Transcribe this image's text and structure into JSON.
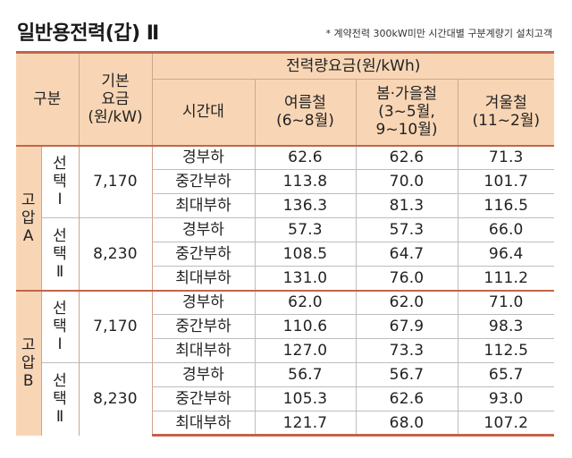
{
  "title": "일반용전력(갑) Ⅱ",
  "note": "* 계약전력 300kW미만 시간대별 구분계량기 설치고객",
  "headers": {
    "division": "구분",
    "base_rate": [
      "기본",
      "요금",
      "(원/kW)"
    ],
    "energy_rate": "전력량요금(원/kWh)",
    "time_period": "시간대",
    "summer": [
      "여름철",
      "(6~8월)"
    ],
    "spring_fall": [
      "봄·가을철",
      "(3~5월,",
      "9~10월)"
    ],
    "winter": [
      "겨울철",
      "(11~2월)"
    ]
  },
  "groups": [
    {
      "label": [
        "고",
        "압",
        "A"
      ],
      "options": [
        {
          "label": [
            "선",
            "택",
            "Ⅰ"
          ],
          "base": "7,170",
          "rows": [
            {
              "period": "경부하",
              "summer": "62.6",
              "spring_fall": "62.6",
              "winter": "71.3"
            },
            {
              "period": "중간부하",
              "summer": "113.8",
              "spring_fall": "70.0",
              "winter": "101.7"
            },
            {
              "period": "최대부하",
              "summer": "136.3",
              "spring_fall": "81.3",
              "winter": "116.5"
            }
          ]
        },
        {
          "label": [
            "선",
            "택",
            "Ⅱ"
          ],
          "base": "8,230",
          "rows": [
            {
              "period": "경부하",
              "summer": "57.3",
              "spring_fall": "57.3",
              "winter": "66.0"
            },
            {
              "period": "중간부하",
              "summer": "108.5",
              "spring_fall": "64.7",
              "winter": "96.4"
            },
            {
              "period": "최대부하",
              "summer": "131.0",
              "spring_fall": "76.0",
              "winter": "111.2"
            }
          ]
        }
      ]
    },
    {
      "label": [
        "고",
        "압",
        "B"
      ],
      "options": [
        {
          "label": [
            "선",
            "택",
            "Ⅰ"
          ],
          "base": "7,170",
          "rows": [
            {
              "period": "경부하",
              "summer": "62.0",
              "spring_fall": "62.0",
              "winter": "71.0"
            },
            {
              "period": "중간부하",
              "summer": "110.6",
              "spring_fall": "67.9",
              "winter": "98.3"
            },
            {
              "period": "최대부하",
              "summer": "127.0",
              "spring_fall": "73.3",
              "winter": "112.5"
            }
          ]
        },
        {
          "label": [
            "선",
            "택",
            "Ⅱ"
          ],
          "base": "8,230",
          "rows": [
            {
              "period": "경부하",
              "summer": "56.7",
              "spring_fall": "56.7",
              "winter": "65.7"
            },
            {
              "period": "중간부하",
              "summer": "105.3",
              "spring_fall": "62.6",
              "winter": "93.0"
            },
            {
              "period": "최대부하",
              "summer": "121.7",
              "spring_fall": "68.0",
              "winter": "107.2"
            }
          ]
        }
      ]
    }
  ]
}
